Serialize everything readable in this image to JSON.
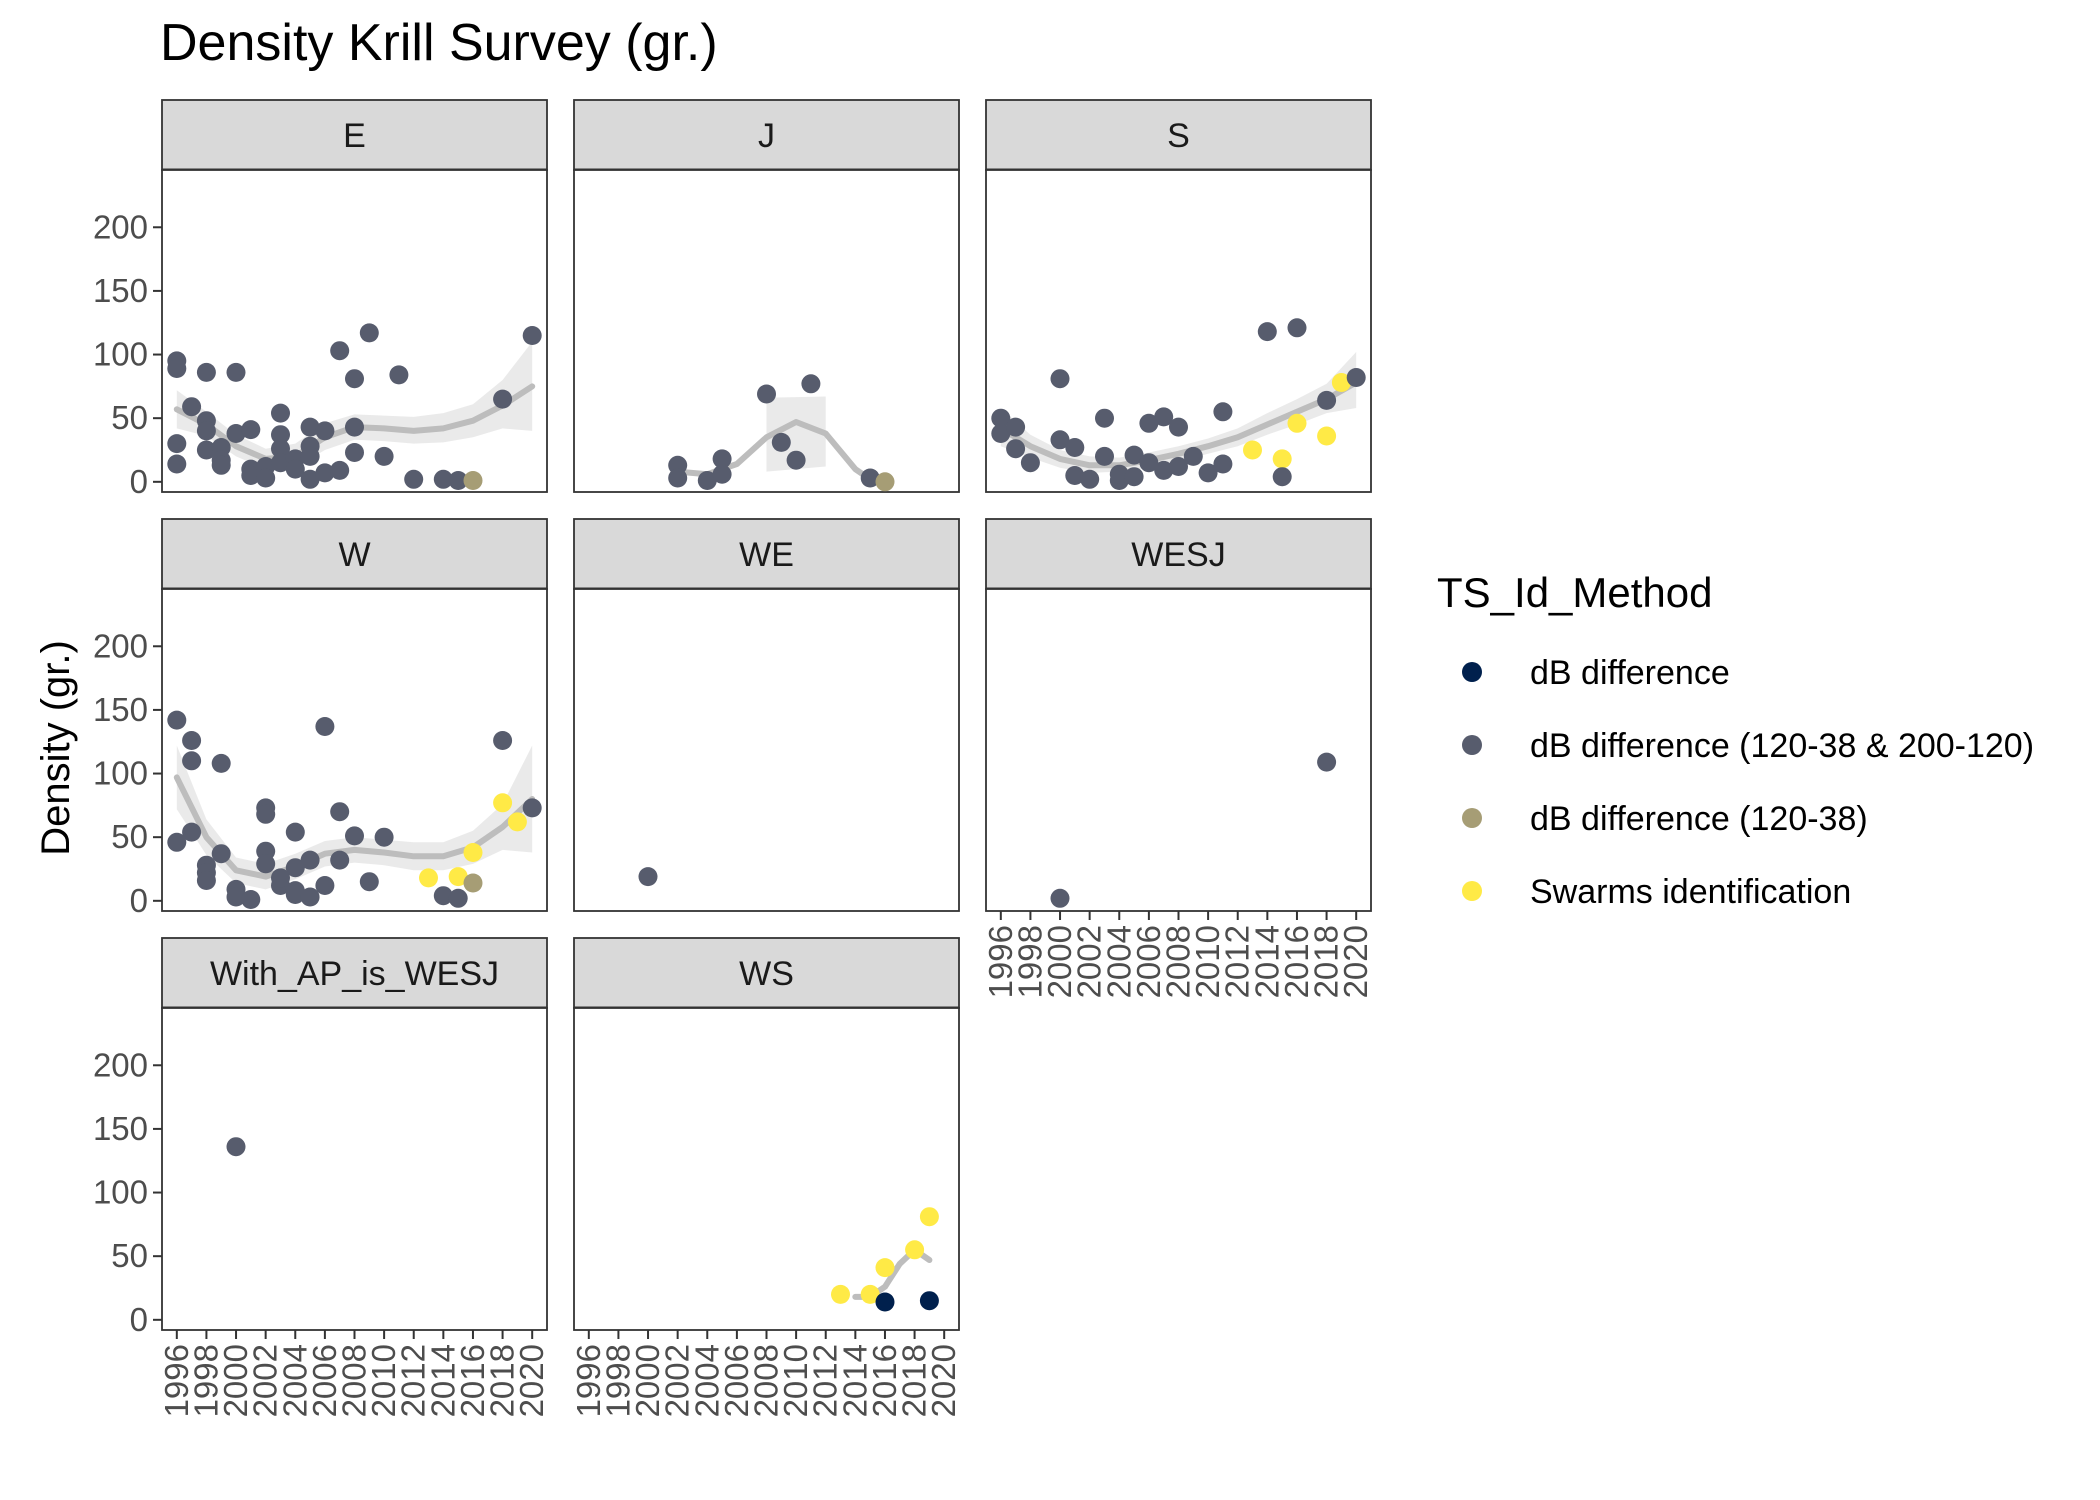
{
  "chart_data": {
    "type": "scatter",
    "title": "Density Krill Survey (gr.)",
    "ylabel": "Density (gr.)",
    "xlabel": "",
    "ylim": [
      -8,
      245
    ],
    "xlim": [
      1995,
      2021
    ],
    "yticks": [
      0,
      50,
      100,
      150,
      200
    ],
    "xticks": [
      "1996",
      "1998",
      "2000",
      "2002",
      "2004",
      "2006",
      "2008",
      "2010",
      "2012",
      "2014",
      "2016",
      "2018",
      "2020"
    ],
    "grid": false,
    "legend": {
      "title": "TS_Id_Method",
      "position": "right",
      "entries": [
        {
          "key": "dbd",
          "label": "dB difference",
          "color": "#00204D"
        },
        {
          "key": "dbd2",
          "label": "dB difference (120-38 & 200-120)",
          "color": "#575C6D"
        },
        {
          "key": "dbd1",
          "label": "dB difference (120-38)",
          "color": "#A69D75"
        },
        {
          "key": "swarm",
          "label": "Swarms identification",
          "color": "#FFEA46"
        }
      ]
    },
    "panels": [
      {
        "name": "E",
        "points": [
          [
            1996,
            95,
            "dbd2"
          ],
          [
            1996,
            89,
            "dbd2"
          ],
          [
            1996,
            30,
            "dbd2"
          ],
          [
            1996,
            14,
            "dbd2"
          ],
          [
            1997,
            59,
            "dbd2"
          ],
          [
            1998,
            86,
            "dbd2"
          ],
          [
            1998,
            48,
            "dbd2"
          ],
          [
            1998,
            40,
            "dbd2"
          ],
          [
            1998,
            25,
            "dbd2"
          ],
          [
            1999,
            27,
            "dbd2"
          ],
          [
            1999,
            17,
            "dbd2"
          ],
          [
            1999,
            13,
            "dbd2"
          ],
          [
            2000,
            86,
            "dbd2"
          ],
          [
            2000,
            38,
            "dbd2"
          ],
          [
            2001,
            41,
            "dbd2"
          ],
          [
            2001,
            10,
            "dbd2"
          ],
          [
            2001,
            5,
            "dbd2"
          ],
          [
            2002,
            12,
            "dbd2"
          ],
          [
            2002,
            3,
            "dbd2"
          ],
          [
            2003,
            54,
            "dbd2"
          ],
          [
            2003,
            37,
            "dbd2"
          ],
          [
            2003,
            26,
            "dbd2"
          ],
          [
            2003,
            15,
            "dbd2"
          ],
          [
            2004,
            18,
            "dbd2"
          ],
          [
            2004,
            10,
            "dbd2"
          ],
          [
            2005,
            43,
            "dbd2"
          ],
          [
            2005,
            28,
            "dbd2"
          ],
          [
            2005,
            20,
            "dbd2"
          ],
          [
            2005,
            2,
            "dbd2"
          ],
          [
            2006,
            40,
            "dbd2"
          ],
          [
            2006,
            7,
            "dbd2"
          ],
          [
            2007,
            103,
            "dbd2"
          ],
          [
            2007,
            9,
            "dbd2"
          ],
          [
            2008,
            81,
            "dbd2"
          ],
          [
            2008,
            43,
            "dbd2"
          ],
          [
            2008,
            23,
            "dbd2"
          ],
          [
            2009,
            117,
            "dbd2"
          ],
          [
            2010,
            20,
            "dbd2"
          ],
          [
            2011,
            84,
            "dbd2"
          ],
          [
            2012,
            2,
            "dbd2"
          ],
          [
            2014,
            2,
            "dbd2"
          ],
          [
            2015,
            1,
            "dbd2"
          ],
          [
            2016,
            1,
            "dbd1"
          ],
          [
            2018,
            65,
            "dbd2"
          ],
          [
            2020,
            115,
            "dbd2"
          ]
        ],
        "smooth": [
          [
            1996,
            57
          ],
          [
            1998,
            45
          ],
          [
            2000,
            28
          ],
          [
            2002,
            18
          ],
          [
            2004,
            20
          ],
          [
            2006,
            35
          ],
          [
            2008,
            43
          ],
          [
            2010,
            42
          ],
          [
            2012,
            40
          ],
          [
            2014,
            42
          ],
          [
            2016,
            48
          ],
          [
            2018,
            60
          ],
          [
            2020,
            75
          ]
        ],
        "band": [
          [
            1996,
            72,
            42
          ],
          [
            1998,
            55,
            36
          ],
          [
            2000,
            37,
            20
          ],
          [
            2002,
            26,
            10
          ],
          [
            2004,
            30,
            11
          ],
          [
            2006,
            46,
            25
          ],
          [
            2008,
            53,
            33
          ],
          [
            2010,
            52,
            32
          ],
          [
            2012,
            51,
            30
          ],
          [
            2014,
            54,
            31
          ],
          [
            2016,
            61,
            35
          ],
          [
            2018,
            80,
            42
          ],
          [
            2020,
            110,
            40
          ]
        ]
      },
      {
        "name": "J",
        "points": [
          [
            2002,
            13,
            "dbd2"
          ],
          [
            2002,
            3,
            "dbd2"
          ],
          [
            2004,
            1,
            "dbd2"
          ],
          [
            2005,
            18,
            "dbd2"
          ],
          [
            2005,
            6,
            "dbd2"
          ],
          [
            2008,
            69,
            "dbd2"
          ],
          [
            2009,
            31,
            "dbd2"
          ],
          [
            2010,
            17,
            "dbd2"
          ],
          [
            2011,
            77,
            "dbd2"
          ],
          [
            2015,
            3,
            "dbd2"
          ],
          [
            2016,
            0,
            "dbd1"
          ]
        ],
        "smooth": [
          [
            2002,
            8
          ],
          [
            2004,
            6
          ],
          [
            2006,
            14
          ],
          [
            2008,
            35
          ],
          [
            2010,
            47
          ],
          [
            2012,
            38
          ],
          [
            2014,
            10
          ],
          [
            2015,
            2
          ]
        ],
        "band": [
          [
            2008,
            66,
            8
          ],
          [
            2012,
            67,
            12
          ]
        ]
      },
      {
        "name": "S",
        "points": [
          [
            1996,
            50,
            "dbd2"
          ],
          [
            1996,
            38,
            "dbd2"
          ],
          [
            1997,
            43,
            "dbd2"
          ],
          [
            1997,
            26,
            "dbd2"
          ],
          [
            1998,
            15,
            "dbd2"
          ],
          [
            2000,
            81,
            "dbd2"
          ],
          [
            2000,
            33,
            "dbd2"
          ],
          [
            2001,
            27,
            "dbd2"
          ],
          [
            2001,
            5,
            "dbd2"
          ],
          [
            2002,
            2,
            "dbd2"
          ],
          [
            2003,
            20,
            "dbd2"
          ],
          [
            2003,
            50,
            "dbd2"
          ],
          [
            2004,
            1,
            "dbd2"
          ],
          [
            2004,
            6,
            "dbd2"
          ],
          [
            2005,
            21,
            "dbd2"
          ],
          [
            2005,
            4,
            "dbd2"
          ],
          [
            2006,
            46,
            "dbd2"
          ],
          [
            2006,
            15,
            "dbd2"
          ],
          [
            2007,
            51,
            "dbd2"
          ],
          [
            2007,
            9,
            "dbd2"
          ],
          [
            2008,
            43,
            "dbd2"
          ],
          [
            2008,
            12,
            "dbd2"
          ],
          [
            2009,
            20,
            "dbd2"
          ],
          [
            2010,
            7,
            "dbd2"
          ],
          [
            2011,
            55,
            "dbd2"
          ],
          [
            2011,
            14,
            "dbd2"
          ],
          [
            2013,
            25,
            "swarm"
          ],
          [
            2015,
            18,
            "swarm"
          ],
          [
            2015,
            4,
            "dbd2"
          ],
          [
            2016,
            46,
            "swarm"
          ],
          [
            2014,
            118,
            "dbd2"
          ],
          [
            2016,
            121,
            "dbd2"
          ],
          [
            2018,
            36,
            "swarm"
          ],
          [
            2018,
            64,
            "dbd2"
          ],
          [
            2019,
            78,
            "swarm"
          ],
          [
            2020,
            82,
            "dbd2"
          ]
        ],
        "smooth": [
          [
            1996,
            42
          ],
          [
            1998,
            28
          ],
          [
            2000,
            18
          ],
          [
            2002,
            13
          ],
          [
            2004,
            13
          ],
          [
            2006,
            17
          ],
          [
            2008,
            22
          ],
          [
            2010,
            28
          ],
          [
            2012,
            35
          ],
          [
            2014,
            45
          ],
          [
            2016,
            55
          ],
          [
            2018,
            65
          ],
          [
            2020,
            78
          ]
        ],
        "band": [
          [
            1996,
            58,
            28
          ],
          [
            1998,
            37,
            19
          ],
          [
            2000,
            25,
            11
          ],
          [
            2002,
            20,
            7
          ],
          [
            2004,
            19,
            8
          ],
          [
            2006,
            23,
            11
          ],
          [
            2008,
            28,
            16
          ],
          [
            2010,
            34,
            22
          ],
          [
            2012,
            42,
            28
          ],
          [
            2014,
            54,
            37
          ],
          [
            2016,
            65,
            45
          ],
          [
            2018,
            77,
            54
          ],
          [
            2020,
            102,
            58
          ]
        ]
      },
      {
        "name": "W",
        "points": [
          [
            1996,
            142,
            "dbd2"
          ],
          [
            1996,
            46,
            "dbd2"
          ],
          [
            1997,
            126,
            "dbd2"
          ],
          [
            1997,
            110,
            "dbd2"
          ],
          [
            1997,
            54,
            "dbd2"
          ],
          [
            1998,
            28,
            "dbd2"
          ],
          [
            1998,
            22,
            "dbd2"
          ],
          [
            1998,
            16,
            "dbd2"
          ],
          [
            1999,
            108,
            "dbd2"
          ],
          [
            1999,
            37,
            "dbd2"
          ],
          [
            2000,
            9,
            "dbd2"
          ],
          [
            2000,
            3,
            "dbd2"
          ],
          [
            2001,
            1,
            "dbd2"
          ],
          [
            2002,
            73,
            "dbd2"
          ],
          [
            2002,
            68,
            "dbd2"
          ],
          [
            2002,
            39,
            "dbd2"
          ],
          [
            2002,
            29,
            "dbd2"
          ],
          [
            2003,
            12,
            "dbd2"
          ],
          [
            2003,
            18,
            "dbd2"
          ],
          [
            2004,
            54,
            "dbd2"
          ],
          [
            2004,
            26,
            "dbd2"
          ],
          [
            2004,
            8,
            "dbd2"
          ],
          [
            2004,
            5,
            "dbd2"
          ],
          [
            2005,
            3,
            "dbd2"
          ],
          [
            2005,
            32,
            "dbd2"
          ],
          [
            2006,
            137,
            "dbd2"
          ],
          [
            2006,
            12,
            "dbd2"
          ],
          [
            2007,
            70,
            "dbd2"
          ],
          [
            2007,
            32,
            "dbd2"
          ],
          [
            2008,
            51,
            "dbd2"
          ],
          [
            2009,
            15,
            "dbd2"
          ],
          [
            2010,
            50,
            "dbd2"
          ],
          [
            2013,
            18,
            "swarm"
          ],
          [
            2014,
            4,
            "dbd2"
          ],
          [
            2015,
            19,
            "swarm"
          ],
          [
            2015,
            2,
            "dbd2"
          ],
          [
            2016,
            38,
            "swarm"
          ],
          [
            2016,
            14,
            "dbd1"
          ],
          [
            2018,
            126,
            "dbd2"
          ],
          [
            2018,
            77,
            "swarm"
          ],
          [
            2019,
            62,
            "swarm"
          ],
          [
            2020,
            73,
            "dbd2"
          ]
        ],
        "smooth": [
          [
            1996,
            97
          ],
          [
            1998,
            50
          ],
          [
            2000,
            24
          ],
          [
            2002,
            19
          ],
          [
            2004,
            27
          ],
          [
            2006,
            37
          ],
          [
            2008,
            40
          ],
          [
            2010,
            38
          ],
          [
            2012,
            35
          ],
          [
            2014,
            35
          ],
          [
            2016,
            42
          ],
          [
            2018,
            58
          ],
          [
            2020,
            80
          ]
        ],
        "band": [
          [
            1996,
            122,
            72
          ],
          [
            1998,
            64,
            36
          ],
          [
            2000,
            34,
            14
          ],
          [
            2002,
            29,
            9
          ],
          [
            2004,
            37,
            17
          ],
          [
            2006,
            47,
            27
          ],
          [
            2008,
            50,
            30
          ],
          [
            2010,
            48,
            28
          ],
          [
            2012,
            46,
            24
          ],
          [
            2014,
            46,
            24
          ],
          [
            2016,
            55,
            29
          ],
          [
            2018,
            76,
            40
          ],
          [
            2020,
            122,
            38
          ]
        ]
      },
      {
        "name": "WE",
        "points": [
          [
            2000,
            19,
            "dbd2"
          ]
        ],
        "smooth": [],
        "band": []
      },
      {
        "name": "WESJ",
        "points": [
          [
            2000,
            2,
            "dbd2"
          ],
          [
            2018,
            109,
            "dbd2"
          ]
        ],
        "smooth": [],
        "band": []
      },
      {
        "name": "With_AP_is_WESJ",
        "points": [
          [
            2000,
            136,
            "dbd2"
          ]
        ],
        "smooth": [],
        "band": []
      },
      {
        "name": "WS",
        "points": [
          [
            2013,
            20,
            "swarm"
          ],
          [
            2015,
            20,
            "swarm"
          ],
          [
            2016,
            41,
            "swarm"
          ],
          [
            2016,
            14,
            "dbd"
          ],
          [
            2018,
            55,
            "swarm"
          ],
          [
            2019,
            81,
            "swarm"
          ],
          [
            2019,
            15,
            "dbd"
          ]
        ],
        "smooth": [
          [
            2014,
            18
          ],
          [
            2015,
            18
          ],
          [
            2016,
            26
          ],
          [
            2017,
            44
          ],
          [
            2018,
            55
          ],
          [
            2019,
            47
          ]
        ],
        "band": []
      }
    ]
  }
}
